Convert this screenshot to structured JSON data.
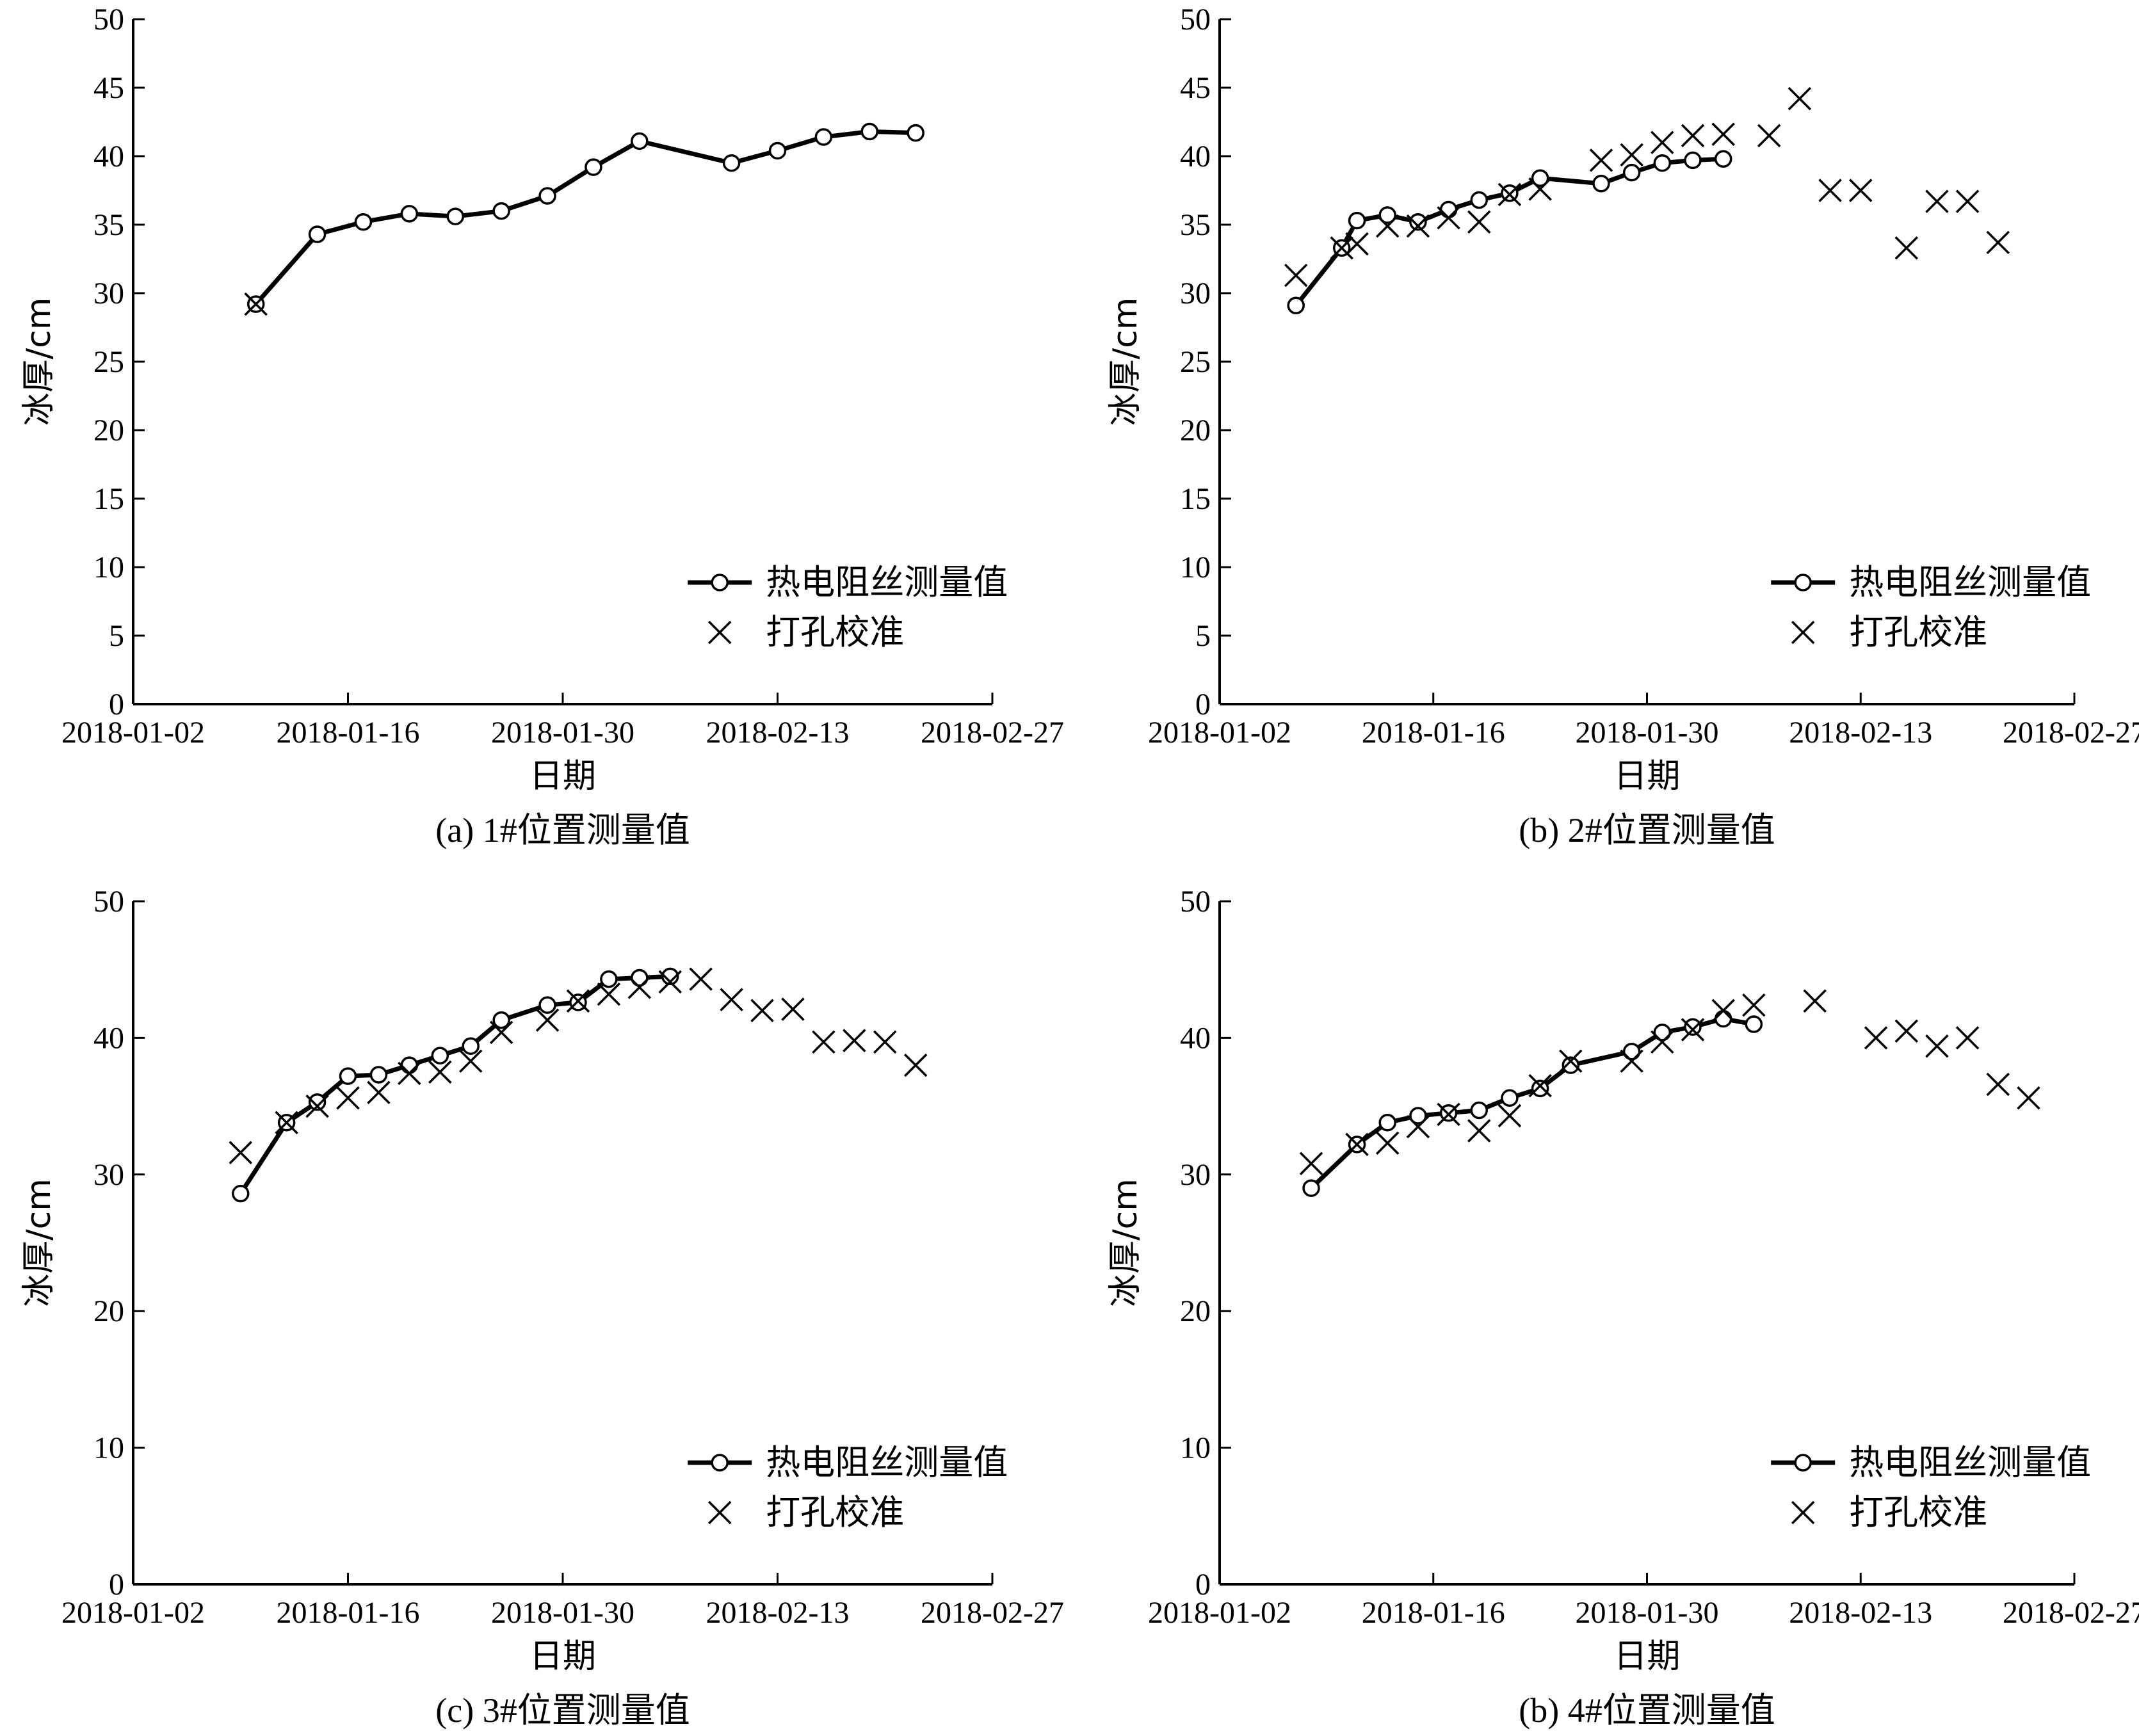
{
  "chart_data": [
    {
      "type": "line",
      "caption": "(a) 1#位置测量值",
      "xlabel": "日期",
      "ylabel": "冰厚/cm",
      "x_ticks": [
        "2018-01-02",
        "2018-01-16",
        "2018-01-30",
        "2018-02-13",
        "2018-02-27"
      ],
      "y_ticks": [
        0,
        5,
        10,
        15,
        20,
        25,
        30,
        35,
        40,
        45,
        50
      ],
      "xlim": [
        "2018-01-02",
        "2018-02-27"
      ],
      "ylim": [
        0,
        50
      ],
      "legend_position": "bottom-right",
      "series": [
        {
          "name": "热电阻丝测量值",
          "marker": "circle",
          "points": [
            [
              "2018-01-10",
              29.2
            ],
            [
              "2018-01-14",
              34.3
            ],
            [
              "2018-01-17",
              35.2
            ],
            [
              "2018-01-20",
              35.8
            ],
            [
              "2018-01-23",
              35.6
            ],
            [
              "2018-01-26",
              36.0
            ],
            [
              "2018-01-29",
              37.1
            ],
            [
              "2018-02-01",
              39.2
            ],
            [
              "2018-02-04",
              41.1
            ],
            [
              "2018-02-10",
              39.5
            ],
            [
              "2018-02-13",
              40.4
            ],
            [
              "2018-02-16",
              41.4
            ],
            [
              "2018-02-19",
              41.8
            ],
            [
              "2018-02-22",
              41.7
            ]
          ]
        },
        {
          "name": "打孔校准",
          "marker": "x",
          "points": [
            [
              "2018-01-10",
              29.2
            ]
          ]
        }
      ]
    },
    {
      "type": "line",
      "caption": "(b) 2#位置测量值",
      "xlabel": "日期",
      "ylabel": "冰厚/cm",
      "x_ticks": [
        "2018-01-02",
        "2018-01-16",
        "2018-01-30",
        "2018-02-13",
        "2018-02-27"
      ],
      "y_ticks": [
        0,
        5,
        10,
        15,
        20,
        25,
        30,
        35,
        40,
        45,
        50
      ],
      "xlim": [
        "2018-01-02",
        "2018-02-27"
      ],
      "ylim": [
        0,
        50
      ],
      "legend_position": "bottom-right",
      "series": [
        {
          "name": "热电阻丝测量值",
          "marker": "circle",
          "points": [
            [
              "2018-01-07",
              29.1
            ],
            [
              "2018-01-10",
              33.3
            ],
            [
              "2018-01-11",
              35.3
            ],
            [
              "2018-01-13",
              35.7
            ],
            [
              "2018-01-15",
              35.2
            ],
            [
              "2018-01-17",
              36.1
            ],
            [
              "2018-01-19",
              36.8
            ],
            [
              "2018-01-21",
              37.3
            ],
            [
              "2018-01-23",
              38.4
            ],
            [
              "2018-01-27",
              38.0
            ],
            [
              "2018-01-29",
              38.8
            ],
            [
              "2018-01-31",
              39.5
            ],
            [
              "2018-02-02",
              39.7
            ],
            [
              "2018-02-04",
              39.8
            ]
          ]
        },
        {
          "name": "打孔校准",
          "marker": "x",
          "points": [
            [
              "2018-01-07",
              31.3
            ],
            [
              "2018-01-10",
              33.3
            ],
            [
              "2018-01-11",
              33.6
            ],
            [
              "2018-01-13",
              34.9
            ],
            [
              "2018-01-15",
              34.9
            ],
            [
              "2018-01-17",
              35.5
            ],
            [
              "2018-01-19",
              35.2
            ],
            [
              "2018-01-21",
              37.2
            ],
            [
              "2018-01-23",
              37.6
            ],
            [
              "2018-01-27",
              39.7
            ],
            [
              "2018-01-29",
              40.1
            ],
            [
              "2018-01-31",
              41.0
            ],
            [
              "2018-02-02",
              41.5
            ],
            [
              "2018-02-04",
              41.6
            ],
            [
              "2018-02-07",
              41.5
            ],
            [
              "2018-02-09",
              44.2
            ],
            [
              "2018-02-11",
              37.5
            ],
            [
              "2018-02-13",
              37.5
            ],
            [
              "2018-02-16",
              33.3
            ],
            [
              "2018-02-18",
              36.7
            ],
            [
              "2018-02-20",
              36.7
            ],
            [
              "2018-02-22",
              33.7
            ]
          ]
        }
      ]
    },
    {
      "type": "line",
      "caption": "(c) 3#位置测量值",
      "xlabel": "日期",
      "ylabel": "冰厚/cm",
      "x_ticks": [
        "2018-01-02",
        "2018-01-16",
        "2018-01-30",
        "2018-02-13",
        "2018-02-27"
      ],
      "y_ticks": [
        0,
        10,
        20,
        30,
        40,
        50
      ],
      "xlim": [
        "2018-01-02",
        "2018-02-27"
      ],
      "ylim": [
        0,
        50
      ],
      "legend_position": "bottom-right",
      "series": [
        {
          "name": "热电阻丝测量值",
          "marker": "circle",
          "points": [
            [
              "2018-01-09",
              28.6
            ],
            [
              "2018-01-12",
              33.8
            ],
            [
              "2018-01-14",
              35.3
            ],
            [
              "2018-01-16",
              37.2
            ],
            [
              "2018-01-18",
              37.3
            ],
            [
              "2018-01-20",
              38.0
            ],
            [
              "2018-01-22",
              38.7
            ],
            [
              "2018-01-24",
              39.4
            ],
            [
              "2018-01-26",
              41.3
            ],
            [
              "2018-01-29",
              42.4
            ],
            [
              "2018-01-31",
              42.6
            ],
            [
              "2018-02-02",
              44.3
            ],
            [
              "2018-02-04",
              44.4
            ],
            [
              "2018-02-06",
              44.5
            ]
          ]
        },
        {
          "name": "打孔校准",
          "marker": "x",
          "points": [
            [
              "2018-01-09",
              31.6
            ],
            [
              "2018-01-12",
              33.8
            ],
            [
              "2018-01-14",
              35.0
            ],
            [
              "2018-01-16",
              35.6
            ],
            [
              "2018-01-18",
              36.0
            ],
            [
              "2018-01-20",
              37.4
            ],
            [
              "2018-01-22",
              37.5
            ],
            [
              "2018-01-24",
              38.3
            ],
            [
              "2018-01-26",
              40.4
            ],
            [
              "2018-01-29",
              41.3
            ],
            [
              "2018-01-31",
              42.7
            ],
            [
              "2018-02-02",
              43.2
            ],
            [
              "2018-02-04",
              43.7
            ],
            [
              "2018-02-06",
              44.1
            ],
            [
              "2018-02-08",
              44.3
            ],
            [
              "2018-02-10",
              42.8
            ],
            [
              "2018-02-12",
              42.0
            ],
            [
              "2018-02-14",
              42.1
            ],
            [
              "2018-02-16",
              39.7
            ],
            [
              "2018-02-18",
              39.8
            ],
            [
              "2018-02-20",
              39.7
            ],
            [
              "2018-02-22",
              38.0
            ]
          ]
        }
      ]
    },
    {
      "type": "line",
      "caption": "(b) 4#位置测量值",
      "xlabel": "日期",
      "ylabel": "冰厚/cm",
      "x_ticks": [
        "2018-01-02",
        "2018-01-16",
        "2018-01-30",
        "2018-02-13",
        "2018-02-27"
      ],
      "y_ticks": [
        0,
        10,
        20,
        30,
        40,
        50
      ],
      "xlim": [
        "2018-01-02",
        "2018-02-27"
      ],
      "ylim": [
        0,
        50
      ],
      "legend_position": "bottom-right",
      "series": [
        {
          "name": "热电阻丝测量值",
          "marker": "circle",
          "points": [
            [
              "2018-01-08",
              29.0
            ],
            [
              "2018-01-11",
              32.2
            ],
            [
              "2018-01-13",
              33.8
            ],
            [
              "2018-01-15",
              34.3
            ],
            [
              "2018-01-17",
              34.5
            ],
            [
              "2018-01-19",
              34.7
            ],
            [
              "2018-01-21",
              35.6
            ],
            [
              "2018-01-23",
              36.3
            ],
            [
              "2018-01-25",
              38.0
            ],
            [
              "2018-01-29",
              39.0
            ],
            [
              "2018-01-31",
              40.4
            ],
            [
              "2018-02-02",
              40.8
            ],
            [
              "2018-02-04",
              41.4
            ],
            [
              "2018-02-06",
              41.0
            ]
          ]
        },
        {
          "name": "打孔校准",
          "marker": "x",
          "points": [
            [
              "2018-01-08",
              30.8
            ],
            [
              "2018-01-11",
              32.2
            ],
            [
              "2018-01-13",
              32.3
            ],
            [
              "2018-01-15",
              33.5
            ],
            [
              "2018-01-17",
              34.4
            ],
            [
              "2018-01-19",
              33.2
            ],
            [
              "2018-01-21",
              34.3
            ],
            [
              "2018-01-23",
              36.5
            ],
            [
              "2018-01-25",
              38.3
            ],
            [
              "2018-01-29",
              38.3
            ],
            [
              "2018-01-31",
              39.7
            ],
            [
              "2018-02-02",
              40.6
            ],
            [
              "2018-02-04",
              42.0
            ],
            [
              "2018-02-06",
              42.4
            ],
            [
              "2018-02-10",
              42.7
            ],
            [
              "2018-02-14",
              40.0
            ],
            [
              "2018-02-16",
              40.5
            ],
            [
              "2018-02-18",
              39.4
            ],
            [
              "2018-02-20",
              40.0
            ],
            [
              "2018-02-22",
              36.6
            ],
            [
              "2018-02-24",
              35.6
            ]
          ]
        }
      ]
    }
  ]
}
